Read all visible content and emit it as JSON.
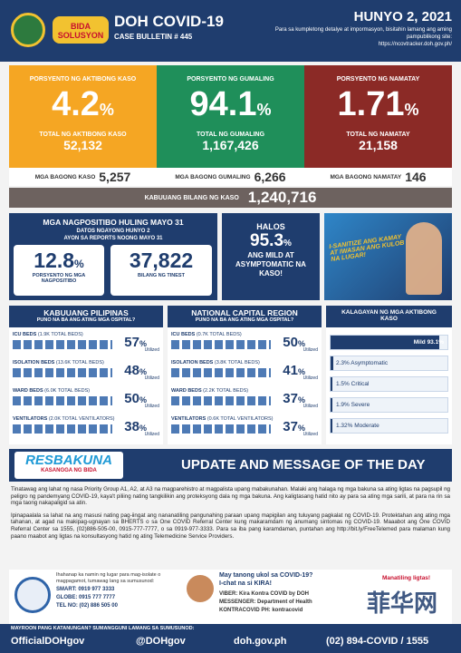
{
  "header": {
    "logo_text": "BIDA SOLUSYON",
    "title": "DOH COVID-19",
    "bulletin": "CASE BULLETIN # 445",
    "date": "HUNYO 2, 2021",
    "site_note": "Para sa kumpletong detalye at impormasyon, bisitahin lamang ang aming pampublikong site:",
    "site_url": "https://ncovtracker.doh.gov.ph/"
  },
  "percent_sign": "%",
  "stats": [
    {
      "label": "PORSYENTO NG AKTIBONG KASO",
      "percent": "4.2",
      "total_label": "TOTAL NG AKTIBONG KASO",
      "total": "52,132",
      "new_label": "MGA BAGONG KASO",
      "new": "5,257"
    },
    {
      "label": "PORSYENTO NG GUMALING",
      "percent": "94.1",
      "total_label": "TOTAL NG GUMALING",
      "total": "1,167,426",
      "new_label": "MGA BAGONG GUMALING",
      "new": "6,266"
    },
    {
      "label": "PORSYENTO NG NAMATAY",
      "percent": "1.71",
      "total_label": "TOTAL NG NAMATAY",
      "total": "21,158",
      "new_label": "MGA BAGONG NAMATAY",
      "new": "146"
    }
  ],
  "total_cases": {
    "label": "KABUUANG BILANG NG KASO",
    "value": "1,240,716"
  },
  "testing": {
    "title": "MGA NAGPOSITIBO HULING MAYO 31",
    "sub1": "DATOS NGAYONG HUNYO 2",
    "sub2": "AYON SA REPORTS NOONG MAYO 31",
    "positivity": "12.8",
    "positivity_label": "PORSYENTO NG MGA NAGPOSITIBO",
    "tests": "37,822",
    "tests_label": "BILANG NG TINEST"
  },
  "mild": {
    "pre": "HALOS",
    "value": "95.3",
    "post": "ANG MILD AT ASYMPTOMATIC NA KASO!"
  },
  "poster": {
    "text": "I-SANITIZE ANG KAMAY AT IWASAN ANG KULOB NA LUGAR!"
  },
  "utilized": "Utilized",
  "hospitals": [
    {
      "title": "KABUUANG PILIPINAS",
      "subtitle": "PUNO NA BA ANG ATING MGA OSPITAL?",
      "rows": [
        {
          "label": "ICU BEDS",
          "note": "(1.9K TOTAL BEDS)",
          "value": "57"
        },
        {
          "label": "ISOLATION BEDS",
          "note": "(13.6K TOTAL BEDS)",
          "value": "48"
        },
        {
          "label": "WARD BEDS",
          "note": "(6.0K TOTAL BEDS)",
          "value": "50"
        },
        {
          "label": "VENTILATORS",
          "note": "(2.0K TOTAL VENTILATORS)",
          "value": "38"
        }
      ]
    },
    {
      "title": "NATIONAL CAPITAL REGION",
      "subtitle": "PUNO NA BA ANG ATING MGA OSPITAL?",
      "rows": [
        {
          "label": "ICU BEDS",
          "note": "(0.7K TOTAL BEDS)",
          "value": "50"
        },
        {
          "label": "ISOLATION BEDS",
          "note": "(3.8K TOTAL BEDS)",
          "value": "41"
        },
        {
          "label": "WARD BEDS",
          "note": "(2.2K TOTAL BEDS)",
          "value": "37"
        },
        {
          "label": "VENTILATORS",
          "note": "(0.6K TOTAL VENTILATORS)",
          "value": "37"
        }
      ]
    }
  ],
  "status": {
    "title": "KALAGAYAN NG MGA AKTIBONG KASO",
    "rows": [
      {
        "label": "Mild 93.1%",
        "value": 93.1
      },
      {
        "label": "2.3% Asymptomatic",
        "value": 2.3
      },
      {
        "label": "1.5% Critical",
        "value": 1.5
      },
      {
        "label": "1.9% Severe",
        "value": 1.9
      },
      {
        "label": "1.32% Moderate",
        "value": 1.32
      }
    ]
  },
  "banner": {
    "logo": "RESBAKUNA",
    "logo_sub": "KASANGGA NG BIDA",
    "title": "UPDATE AND MESSAGE OF THE DAY"
  },
  "message": [
    "Tinatawag ang lahat ng nasa Priority Group A1, A2, at A3 na magparehistro at magpalista upang mabakunahan. Malaki ang halaga ng mga bakuna sa ating ligtas na pagsupil ng peligro ng pandemyang COVID-19, kaya't piliing nating tangkilikin ang proteksyong dala ng mga bakuna. Ang kaligtasang hatid nito ay para sa ating mga sarili, at para na rin sa mga taong nakapaligid sa atin.",
    "Ipinapaalala sa lahat na ang masusi nating pag-iingat ang nananatiling pangunahing paraan upang mapigilan ang tuluyang pagkalat ng COVID-19. Protektahan ang ating mga tahanan, at agad na makipag-ugnayan sa BHERTS o sa One COVID Referral Center kung makaramdam ng anumang sintomas ng COVID-19. Maaabot ang One COVID Referral Center sa 1555, (02)886-505-00, 0915-777-7777, o sa 0919-977-3333. Para sa iba pang karamdaman, puntahan ang http://bit.ly/FreeTelemed para malaman kung paano maabot ang ligtas na konsultasyong hatid ng ating Telemedicine Service Providers."
  ],
  "contacts": {
    "isolation_note": "Ihahanap ka namin ng lugar para mag-isolate o magpagamot, tumawag lang sa sumusunod:",
    "smart": "SMART: 0919 977 3333",
    "globe": "GLOBE: 0915 777 7777",
    "tel": "TEL NO: (02) 886 505 00",
    "kira_title": "May tanong ukol sa COVID-19?",
    "kira_sub": "I-chat na si KIRA!",
    "viber": "VIBER: Kira Kontra COVID by DOH",
    "messenger": "MESSENGER: Department of Health",
    "kontracovid": "KONTRACOVID PH: kontracovid",
    "reminder": "Manatiling ligtas!"
  },
  "footer": {
    "note": "MAYROON PANG KATANUNGAN? SUMANGGUNI LAMANG SA SUMUSUNOD:",
    "facebook": "OfficialDOHgov",
    "twitter": "@DOHgov",
    "web": "doh.gov.ph",
    "hotline": "(02) 894-COVID / 1555"
  },
  "watermark": "菲华网"
}
